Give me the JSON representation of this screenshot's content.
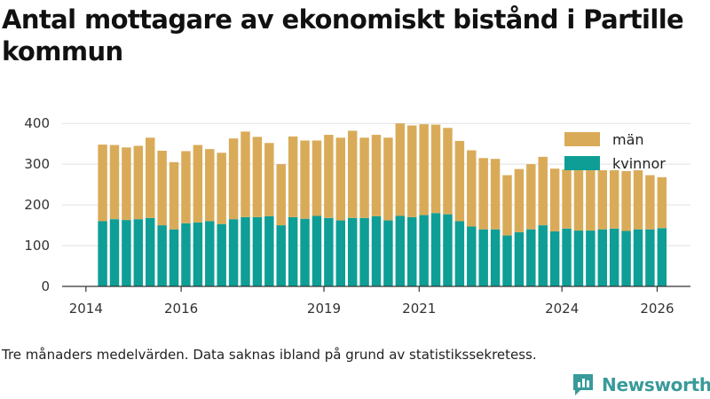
{
  "chart_data": {
    "type": "bar",
    "stacked": true,
    "title": "Antal mottagare av ekonomiskt bistånd i Partille kommun",
    "footnote": "Tre månaders medelvärden. Data saknas ibland på grund av statistikssekretess.",
    "brand": "Newsworthy",
    "x_ticks": [
      2014,
      2016,
      2019,
      2021,
      2024,
      2026
    ],
    "y_ticks": [
      0,
      100,
      200,
      300,
      400
    ],
    "ylim": [
      0,
      420
    ],
    "xlim": [
      2013.5,
      2026.7
    ],
    "start": 2014.35,
    "step": 0.25,
    "series": [
      {
        "name": "kvinnor",
        "color": "#0e9e96",
        "values": [
          160,
          165,
          163,
          165,
          168,
          150,
          140,
          155,
          157,
          160,
          153,
          165,
          170,
          170,
          172,
          150,
          170,
          166,
          173,
          168,
          162,
          168,
          168,
          172,
          162,
          173,
          170,
          175,
          180,
          177,
          160,
          147,
          140,
          140,
          125,
          133,
          140,
          150,
          135,
          142,
          137,
          137,
          140,
          142,
          136,
          140,
          140,
          143
        ]
      },
      {
        "name": "män",
        "color": "#d9ab59",
        "values": [
          188,
          182,
          178,
          180,
          197,
          183,
          165,
          177,
          190,
          177,
          175,
          198,
          210,
          197,
          180,
          150,
          198,
          192,
          185,
          204,
          203,
          214,
          197,
          200,
          203,
          227,
          225,
          223,
          217,
          212,
          197,
          187,
          175,
          173,
          148,
          155,
          160,
          168,
          154,
          145,
          148,
          148,
          145,
          143,
          147,
          145,
          133,
          125
        ]
      }
    ],
    "legend_position": "top-right"
  }
}
